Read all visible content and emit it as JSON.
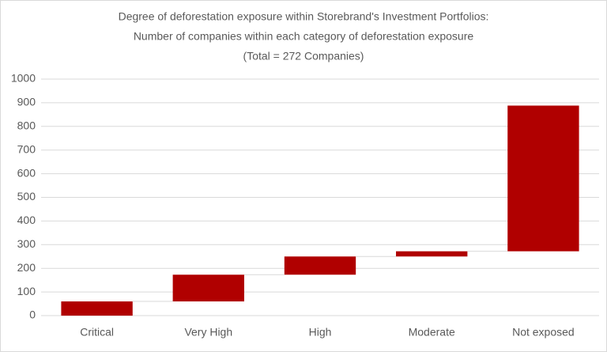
{
  "chart_data": {
    "type": "waterfall",
    "title": [
      "Degree  of deforestation exposure within Storebrand's Investment  Portfolios:",
      "Number  of companies within each category of deforestation exposure",
      "(Total = 272 Companies)"
    ],
    "categories": [
      "Critical",
      "Very High",
      "High",
      "Moderate",
      "Not exposed"
    ],
    "values": [
      60,
      113,
      77,
      22,
      616
    ],
    "color": "#b00000",
    "ylim": [
      0,
      1000
    ],
    "yticks": [
      0,
      100,
      200,
      300,
      400,
      500,
      600,
      700,
      800,
      900,
      1000
    ],
    "grid": true
  }
}
